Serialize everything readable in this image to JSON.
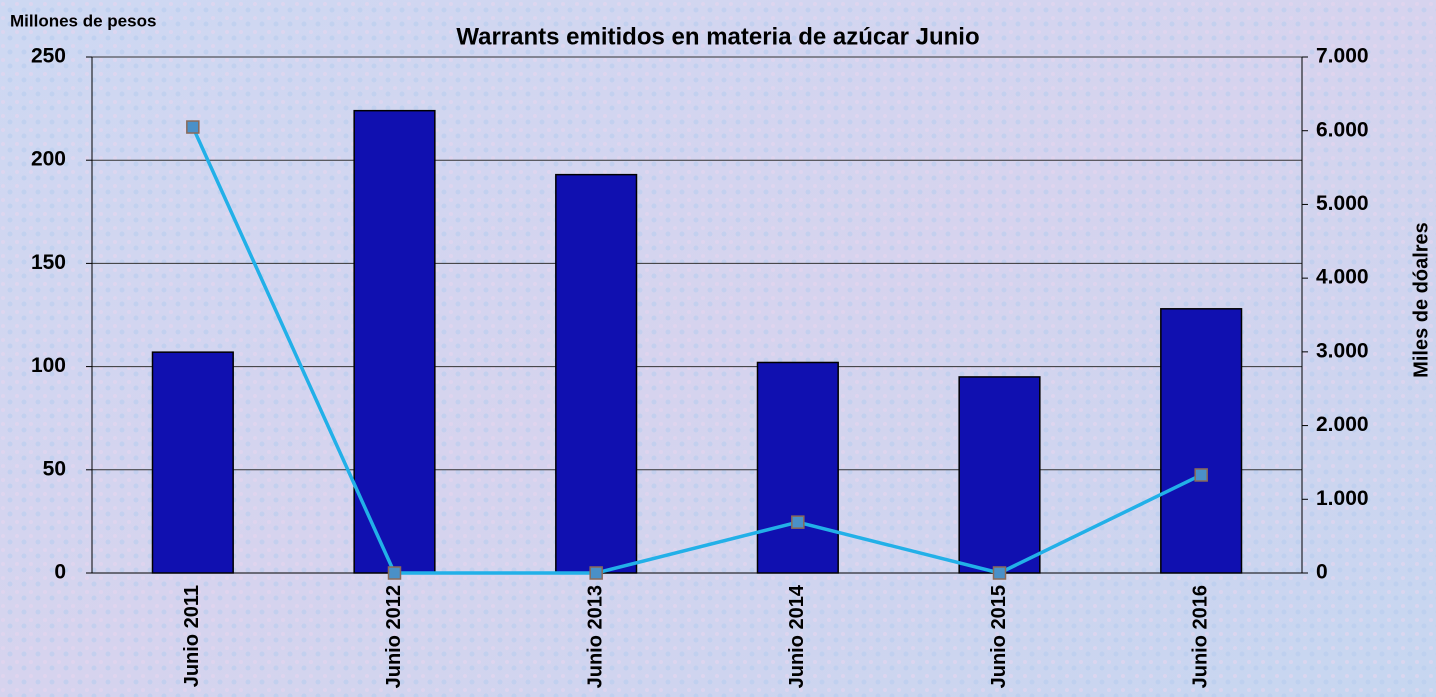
{
  "chart_data": {
    "type": "bar_line",
    "title": "Warrants emitidos en materia de azúcar Junio",
    "y_label": "Millones de pesos",
    "y2_label": "Miles de dóalres",
    "categories": [
      "Junio 2011",
      "Junio 2012",
      "Junio 2013",
      "Junio 2014",
      "Junio 2015",
      "Junio 2016"
    ],
    "series": [
      {
        "type": "bar",
        "color": "#1010b0",
        "values": [
          107,
          224,
          193,
          102,
          95,
          128
        ]
      },
      {
        "type": "line",
        "axis": "y2",
        "color": "#22b0e8",
        "marker_color": "#4a90c8",
        "values": [
          6050,
          0,
          0,
          690,
          0,
          1330
        ]
      }
    ],
    "ylim": [
      0,
      250
    ],
    "yticks": [
      0,
      50,
      100,
      150,
      200,
      250
    ],
    "y2lim": [
      0,
      7000
    ],
    "y2ticks": [
      0,
      {
        "value": 1000,
        "label": "1.000"
      },
      {
        "value": 2000,
        "label": "2.000"
      },
      {
        "value": 3000,
        "label": "3.000"
      },
      {
        "value": 4000,
        "label": "4.000"
      },
      {
        "value": 5000,
        "label": "5.000"
      },
      {
        "value": 6000,
        "label": "6.000"
      },
      {
        "value": 7000,
        "label": "7.000"
      }
    ],
    "grid": true
  }
}
